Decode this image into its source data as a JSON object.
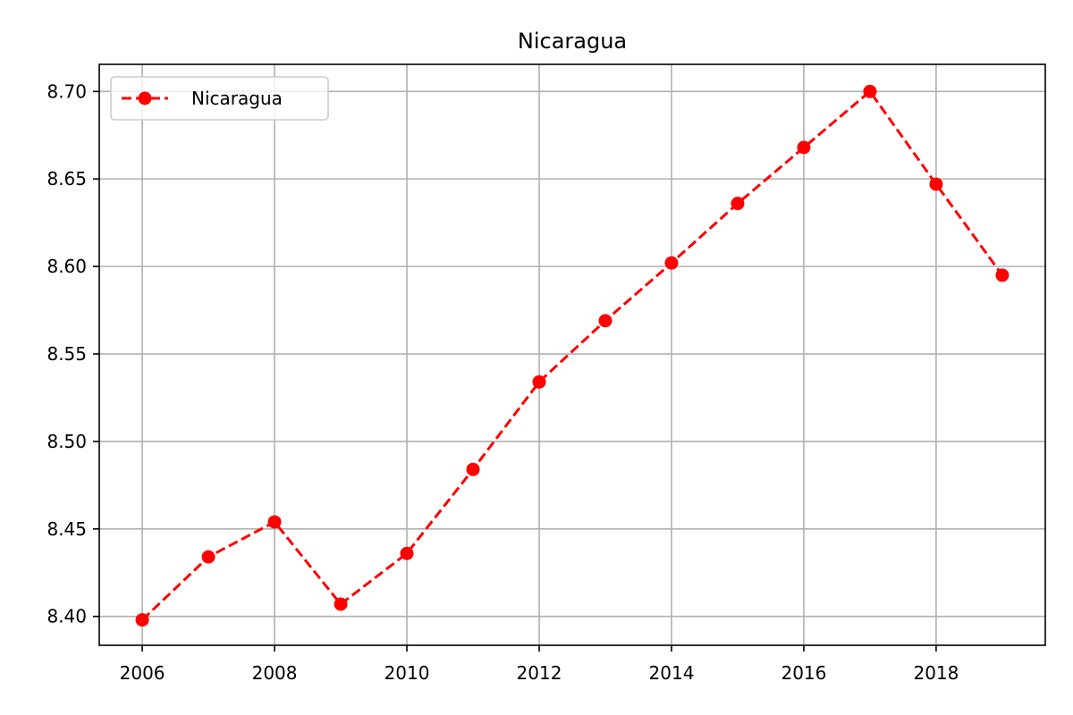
{
  "chart_data": {
    "type": "line",
    "title": "Nicaragua",
    "xlabel": "",
    "ylabel": "",
    "x": [
      2006,
      2007,
      2008,
      2009,
      2010,
      2011,
      2012,
      2013,
      2014,
      2015,
      2016,
      2017,
      2018,
      2019
    ],
    "series": [
      {
        "name": "Nicaragua",
        "color": "#ff0000",
        "line_style": "dashed",
        "marker": "circle",
        "values": [
          8.398,
          8.434,
          8.454,
          8.407,
          8.436,
          8.484,
          8.534,
          8.569,
          8.602,
          8.636,
          8.668,
          8.7,
          8.647,
          8.595
        ]
      }
    ],
    "xlim": [
      2005.35,
      2019.65
    ],
    "ylim": [
      8.3835,
      8.7155
    ],
    "xticks": [
      2006,
      2008,
      2010,
      2012,
      2014,
      2016,
      2018
    ],
    "yticks": [
      8.4,
      8.45,
      8.5,
      8.55,
      8.6,
      8.65,
      8.7
    ],
    "ytick_labels": [
      "8.40",
      "8.45",
      "8.50",
      "8.55",
      "8.60",
      "8.65",
      "8.70"
    ],
    "grid": true,
    "legend": "top-left"
  }
}
